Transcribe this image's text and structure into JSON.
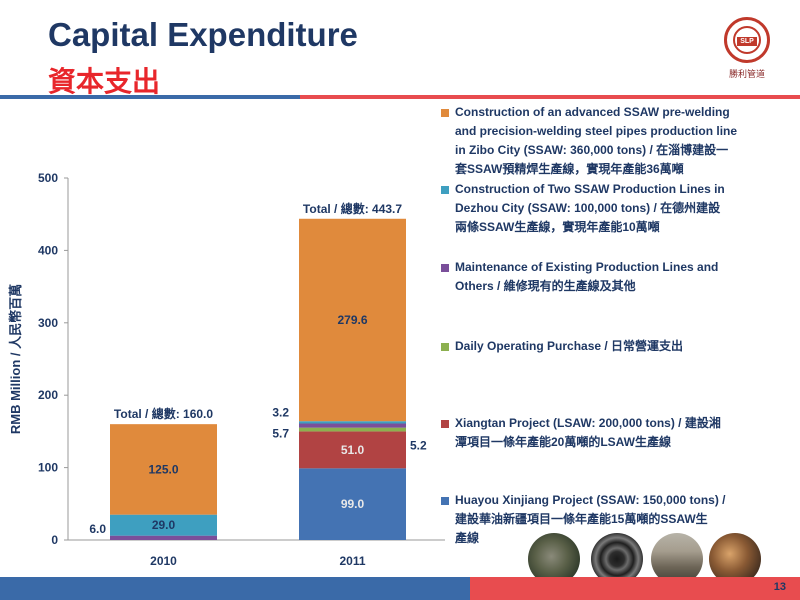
{
  "header": {
    "title_en": "Capital Expenditure",
    "title_zh": "資本支出",
    "logo_badge": "SLP",
    "logo_caption": "勝利管道",
    "brand_colors": {
      "navy": "#1f3864",
      "red": "#e8262b",
      "blue_bar": "#3a6aa8",
      "red_bar": "#e84c4f"
    }
  },
  "page_number": "13",
  "chart_data": {
    "type": "stacked-bar",
    "ylabel": "RMB Million / 人民幣百萬",
    "ylim": [
      0,
      500
    ],
    "yticks": [
      0,
      100,
      200,
      300,
      400,
      500
    ],
    "categories": [
      "2010",
      "2011"
    ],
    "grid": false,
    "legend_position": "right",
    "series": [
      {
        "name": "Huayou Xinjiang Project (SSAW: 150,000 tons) / 建設華油新疆項目一條年產能15萬噸的SSAW生產線",
        "color": "#4473b3",
        "values": [
          0,
          99.0
        ],
        "labels": [
          "",
          "99.0"
        ]
      },
      {
        "name": "Xiangtan Project (LSAW: 200,000 tons) / 建設湘潭項目一條年產能20萬噸的LSAW生產線",
        "color": "#b14343",
        "values": [
          0,
          51.0
        ],
        "labels": [
          "",
          "51.0"
        ]
      },
      {
        "name": "Daily Operating Purchase / 日常營運支出",
        "color": "#8cb04f",
        "values": [
          0,
          5.2
        ],
        "labels": [
          "",
          "5.2"
        ]
      },
      {
        "name": "Maintenance of Existing Production Lines and Others / 維修現有的生產線及其他",
        "color": "#7a4f9a",
        "values": [
          6.0,
          5.7
        ],
        "labels": [
          "6.0",
          "5.7"
        ]
      },
      {
        "name": "Construction of Two SSAW Production Lines in Dezhou City (SSAW: 100,000 tons) / 在德州建設兩條SSAW生產線，實現年產能10萬噸",
        "color": "#3e9fc0",
        "values": [
          29.0,
          3.2
        ],
        "labels": [
          "29.0",
          "3.2"
        ]
      },
      {
        "name": "Construction of an advanced SSAW pre-welding and precision-welding steel pipes production line in Zibo City (SSAW: 360,000 tons) / 在淄博建設一套SSAW預精焊生產線，實現年產能36萬噸",
        "color": "#e08a3c",
        "values": [
          125.0,
          279.6
        ],
        "labels": [
          "125.0",
          "279.6"
        ]
      }
    ],
    "totals": [
      "Total  / 總數: 160.0",
      "Total  / 總數:  443.7"
    ]
  },
  "legend": [
    {
      "color": "#e08a3c",
      "text": "Construction of  an advanced SSAW pre-welding\nand precision-welding steel pipes production line\nin Zibo City (SSAW: 360,000 tons) / 在淄博建設一\n套SSAW預精焊生產線，實現年產能36萬噸"
    },
    {
      "color": "#3e9fc0",
      "text": "Construction of Two SSAW Production Lines in\nDezhou City (SSAW: 100,000 tons) /  在德州建設\n兩條SSAW生產線，實現年產能10萬噸"
    },
    {
      "color": "#7a4f9a",
      "text": "Maintenance of Existing Production Lines and\nOthers /  維修現有的生產線及其他"
    },
    {
      "color": "#8cb04f",
      "text": "Daily Operating Purchase / 日常營運支出"
    },
    {
      "color": "#b14343",
      "text": "Xiangtan Project (LSAW: 200,000 tons) / 建設湘\n潭項目一條年產能20萬噸的LSAW生產線"
    },
    {
      "color": "#4473b3",
      "text": "Huayou Xinjiang Project (SSAW: 150,000 tons) /\n建設華油新疆項目一條年產能15萬噸的SSAW生\n產線"
    }
  ]
}
